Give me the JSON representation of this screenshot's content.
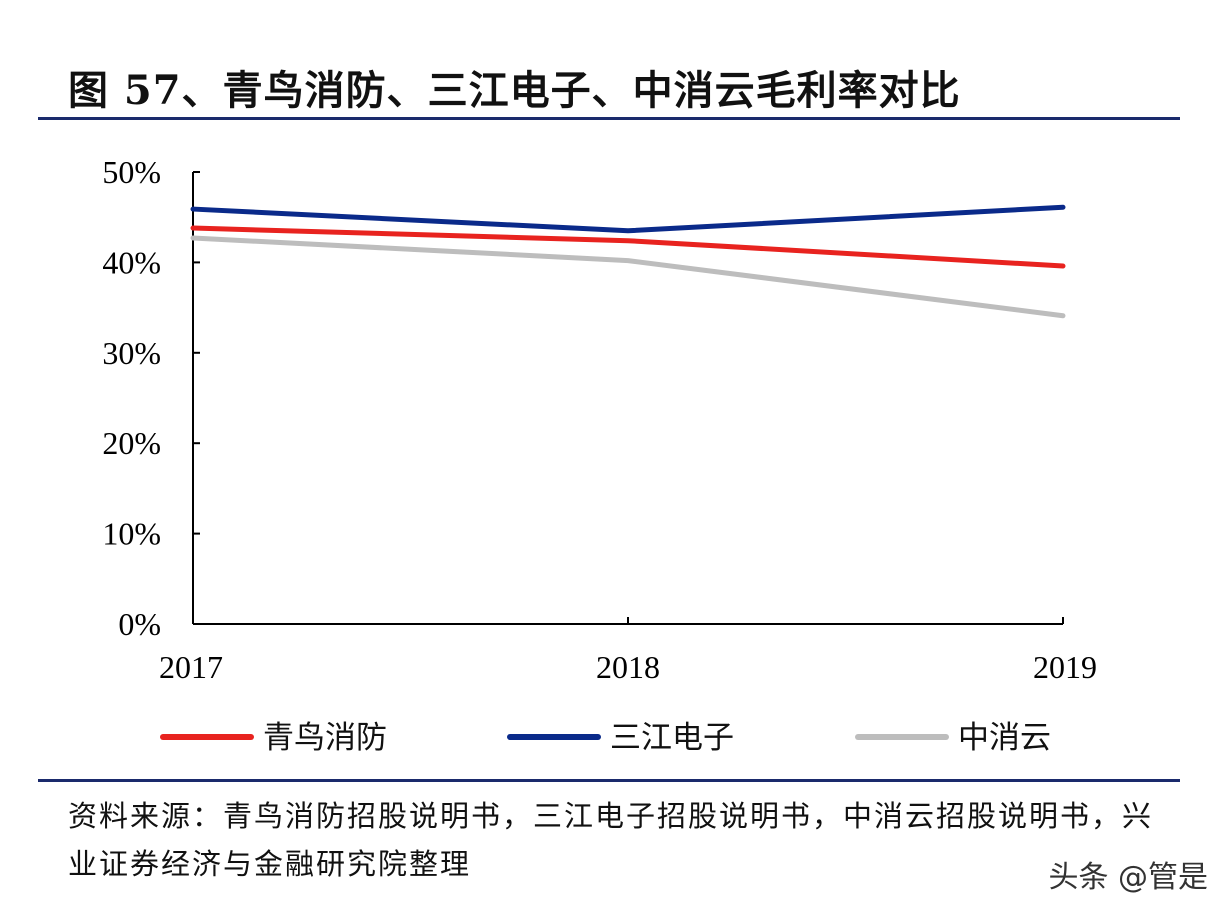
{
  "title": "图 57、青鸟消防、三江电子、中消云毛利率对比",
  "source": "资料来源：青鸟消防招股说明书，三江电子招股说明书，中消云招股说明书，兴业证券经济与金融研究院整理",
  "watermark": "头条 @管是",
  "chart_data": {
    "type": "line",
    "x": [
      "2017",
      "2018",
      "2019"
    ],
    "y_ticks": [
      "0%",
      "10%",
      "20%",
      "30%",
      "40%",
      "50%"
    ],
    "ylim": [
      0,
      50
    ],
    "grid": false,
    "legend_position": "bottom",
    "series": [
      {
        "name": "青鸟消防",
        "color": "#e8231f",
        "values": [
          43.8,
          42.4,
          39.6
        ]
      },
      {
        "name": "三江电子",
        "color": "#0a2a8a",
        "values": [
          45.9,
          43.5,
          46.1
        ]
      },
      {
        "name": "中消云",
        "color": "#bdbdbd",
        "values": [
          42.7,
          40.2,
          34.1
        ]
      }
    ]
  }
}
